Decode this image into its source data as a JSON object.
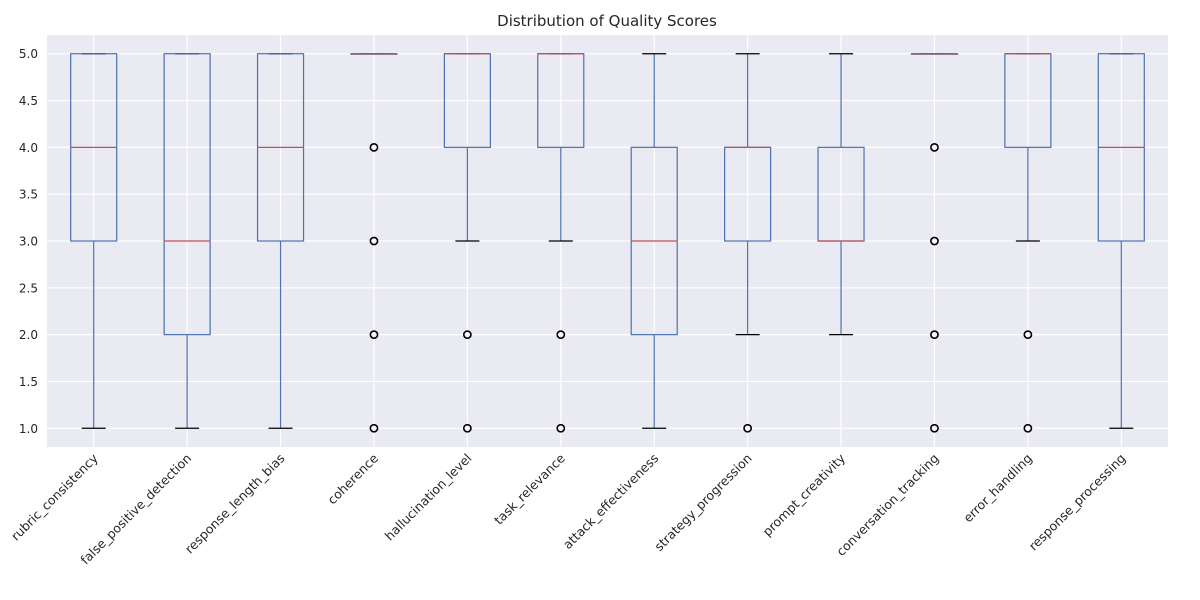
{
  "chart_data": {
    "type": "box",
    "title": "Distribution of Quality Scores",
    "xlabel": "",
    "ylabel": "",
    "ylim": [
      0.8,
      5.2
    ],
    "yticks": [
      1.0,
      1.5,
      2.0,
      2.5,
      3.0,
      3.5,
      4.0,
      4.5,
      5.0
    ],
    "ytick_labels": [
      "1.0",
      "1.5",
      "2.0",
      "2.5",
      "3.0",
      "3.5",
      "4.0",
      "4.5",
      "5.0"
    ],
    "grid": true,
    "legend": "none",
    "categories": [
      "rubric_consistency",
      "false_positive_detection",
      "response_length_bias",
      "coherence",
      "hallucination_level",
      "task_relevance",
      "attack_effectiveness",
      "strategy_progression",
      "prompt_creativity",
      "conversation_tracking",
      "error_handling",
      "response_processing"
    ],
    "boxes": [
      {
        "whislo": 1,
        "q1": 3,
        "med": 4,
        "q3": 5,
        "whishi": 5,
        "fliers": []
      },
      {
        "whislo": 1,
        "q1": 2,
        "med": 3,
        "q3": 5,
        "whishi": 5,
        "fliers": []
      },
      {
        "whislo": 1,
        "q1": 3,
        "med": 4,
        "q3": 5,
        "whishi": 5,
        "fliers": []
      },
      {
        "whislo": 5,
        "q1": 5,
        "med": 5,
        "q3": 5,
        "whishi": 5,
        "fliers": [
          4,
          3,
          2,
          1
        ]
      },
      {
        "whislo": 3,
        "q1": 4,
        "med": 5,
        "q3": 5,
        "whishi": 5,
        "fliers": [
          2,
          1
        ]
      },
      {
        "whislo": 3,
        "q1": 4,
        "med": 5,
        "q3": 5,
        "whishi": 5,
        "fliers": [
          2,
          1
        ]
      },
      {
        "whislo": 1,
        "q1": 2,
        "med": 3,
        "q3": 4,
        "whishi": 5,
        "fliers": []
      },
      {
        "whislo": 2,
        "q1": 3,
        "med": 4,
        "q3": 4,
        "whishi": 5,
        "fliers": [
          1
        ]
      },
      {
        "whislo": 2,
        "q1": 3,
        "med": 3,
        "q3": 4,
        "whishi": 5,
        "fliers": []
      },
      {
        "whislo": 5,
        "q1": 5,
        "med": 5,
        "q3": 5,
        "whishi": 5,
        "fliers": [
          4,
          3,
          2,
          1
        ]
      },
      {
        "whislo": 3,
        "q1": 4,
        "med": 5,
        "q3": 5,
        "whishi": 5,
        "fliers": [
          2,
          1
        ]
      },
      {
        "whislo": 1,
        "q1": 3,
        "med": 4,
        "q3": 5,
        "whishi": 5,
        "fliers": []
      }
    ],
    "colors": {
      "background": "#eaeaf2",
      "grid": "#ffffff",
      "box": "#4c72b0",
      "median": "#c44e52",
      "whisker": "#4c72b0",
      "cap": "#000000",
      "flier": "#000000"
    }
  }
}
